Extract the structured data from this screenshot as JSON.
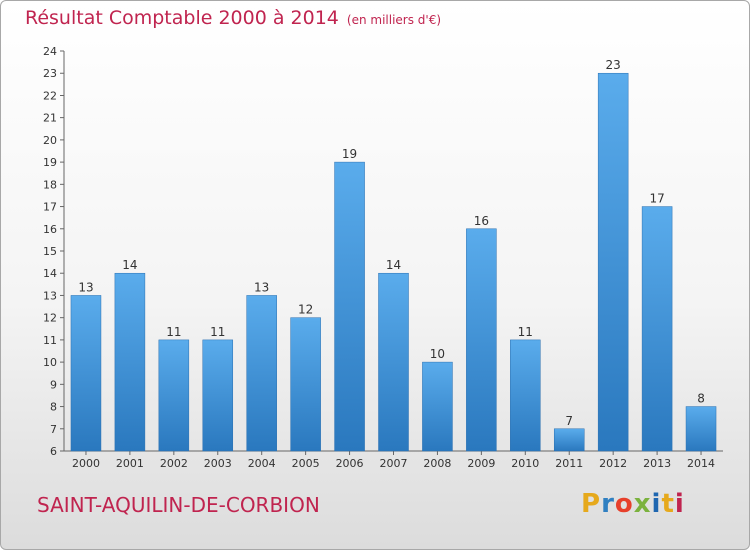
{
  "header": {
    "title": "Résultat Comptable 2000 à 2014",
    "unit": "(en milliers d'€)"
  },
  "footer": {
    "town": "SAINT-AQUILIN-DE-CORBION",
    "logo_letters": [
      "P",
      "r",
      "o",
      "x",
      "i",
      "t",
      "i"
    ],
    "logo_colors": [
      "#e6a91c",
      "#2f7fc1",
      "#e7402b",
      "#7bb23e",
      "#1f66b0",
      "#e6a91c",
      "#c0244f"
    ]
  },
  "colors": {
    "title": "#c0244f",
    "bar_top": "#5aacec",
    "bar_bottom": "#2a78be"
  },
  "chart_data": {
    "type": "bar",
    "categories": [
      "2000",
      "2001",
      "2002",
      "2003",
      "2004",
      "2005",
      "2006",
      "2007",
      "2008",
      "2009",
      "2010",
      "2011",
      "2012",
      "2013",
      "2014"
    ],
    "values": [
      13,
      14,
      11,
      11,
      13,
      12,
      19,
      14,
      10,
      16,
      11,
      7,
      23,
      17,
      8
    ],
    "ylim": [
      6,
      24
    ],
    "yticks": [
      6,
      7,
      8,
      9,
      10,
      11,
      12,
      13,
      14,
      15,
      16,
      17,
      18,
      19,
      20,
      21,
      22,
      23,
      24
    ],
    "grid": false,
    "data_labels": true
  }
}
